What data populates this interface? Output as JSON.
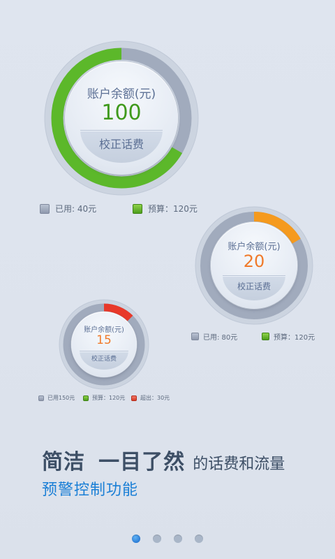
{
  "gauges": [
    {
      "title": "账户余额(元)",
      "value": "100",
      "button": "校正话费",
      "value_color": "#3f9a1c",
      "arc_color": "#5cb82a",
      "used_fraction": 0.333,
      "legend": [
        {
          "icon": "grey-square-icon",
          "label": "已用: 40元"
        },
        {
          "icon": "green-square-icon",
          "label": "预算：120元"
        }
      ]
    },
    {
      "title": "账户余额(元)",
      "value": "20",
      "button": "校正话费",
      "value_color": "#f07a2a",
      "arc_color": "#f59a1e",
      "used_fraction": 0.167,
      "legend": [
        {
          "icon": "grey-square-icon",
          "label": "已用: 80元"
        },
        {
          "icon": "green-square-icon",
          "label": "预算：120元"
        }
      ]
    },
    {
      "title": "账户余额(元)",
      "value": "15",
      "button": "校正话费",
      "value_color": "#f07a2a",
      "arc_color": "#e8392a",
      "used_fraction": 0.125,
      "legend": [
        {
          "icon": "grey-square-icon",
          "label": "已用150元"
        },
        {
          "icon": "green-square-icon",
          "label": "预算：120元"
        },
        {
          "icon": "red-square-icon",
          "label": "超出：30元"
        }
      ]
    }
  ],
  "headline": {
    "part1": "简洁",
    "part2": "一目了然",
    "part3": "的话费和流量",
    "line2": "预警控制功能"
  },
  "pager": {
    "count": 4,
    "active": 0
  }
}
